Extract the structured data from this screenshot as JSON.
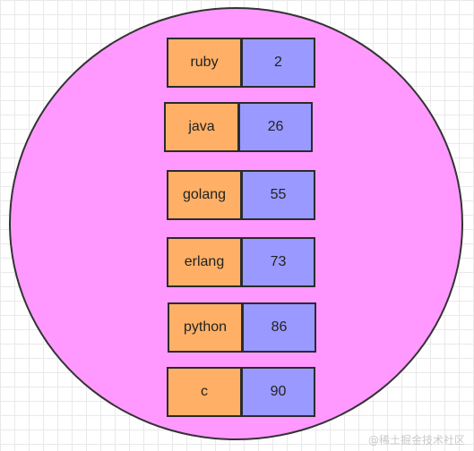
{
  "colors": {
    "circle_fill": "#ff99ff",
    "key_fill": "#ffb066",
    "value_fill": "#9999ff",
    "border": "#2b2b2b"
  },
  "entries": [
    {
      "key": "ruby",
      "value": "2"
    },
    {
      "key": "java",
      "value": "26"
    },
    {
      "key": "golang",
      "value": "55"
    },
    {
      "key": "erlang",
      "value": "73"
    },
    {
      "key": "python",
      "value": "86"
    },
    {
      "key": "c",
      "value": "90"
    }
  ],
  "watermark": "@稀土掘金技术社区"
}
